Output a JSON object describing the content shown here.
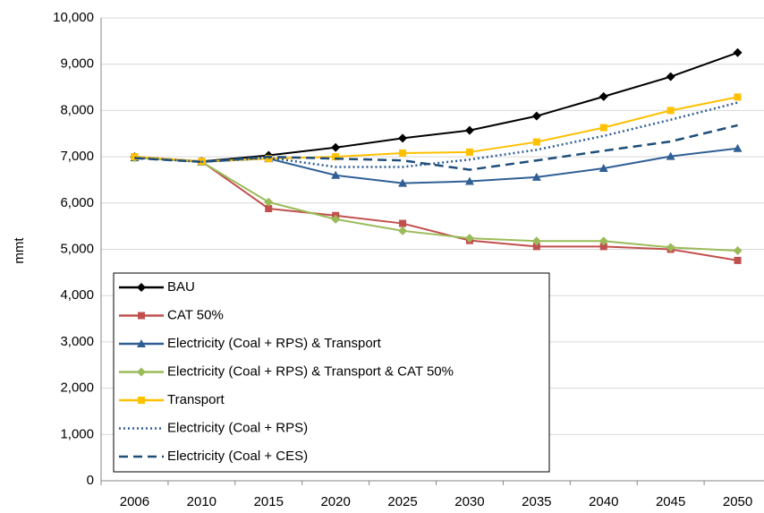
{
  "chart_data": {
    "type": "line",
    "y_label": "mmt",
    "categories": [
      "2006",
      "2010",
      "2015",
      "2020",
      "2025",
      "2030",
      "2035",
      "2040",
      "2045",
      "2050"
    ],
    "ylim": [
      0,
      10000
    ],
    "yticks": [
      0,
      {
        "value": 1000,
        "label": "1,000"
      },
      {
        "value": 2000,
        "label": "2,000"
      },
      {
        "value": 3000,
        "label": "3,000"
      },
      {
        "value": 4000,
        "label": "4,000"
      },
      {
        "value": 5000,
        "label": "5,000"
      },
      {
        "value": 6000,
        "label": "6,000"
      },
      {
        "value": 7000,
        "label": "7,000"
      },
      {
        "value": 8000,
        "label": "8,000"
      },
      {
        "value": 9000,
        "label": "9,000"
      },
      {
        "value": 10000,
        "label": "10,000"
      }
    ],
    "grid": true,
    "legend": "lower left",
    "series": [
      {
        "name": "BAU",
        "color": "#000000",
        "marker": "diamond",
        "dash": "solid",
        "values": [
          7000,
          6900,
          7030,
          7200,
          7400,
          7570,
          7880,
          8300,
          8730,
          9250
        ]
      },
      {
        "name": "CAT 50%",
        "color": "#c0504d",
        "marker": "square",
        "dash": "solid",
        "values": [
          7000,
          6900,
          5880,
          5730,
          5560,
          5190,
          5060,
          5060,
          5000,
          4760
        ]
      },
      {
        "name": "Electricity (Coal + RPS) & Transport",
        "color": "#2f5f95",
        "marker": "triangle",
        "dash": "solid",
        "values": [
          6980,
          6890,
          6960,
          6600,
          6430,
          6470,
          6560,
          6750,
          7010,
          7180
        ]
      },
      {
        "name": "Electricity (Coal + RPS) & Transport & CAT 50%",
        "color": "#9bbb59",
        "marker": "diamond",
        "dash": "solid",
        "values": [
          6980,
          6890,
          6020,
          5650,
          5400,
          5240,
          5180,
          5180,
          5040,
          4970
        ]
      },
      {
        "name": "Transport",
        "color": "#ffc000",
        "marker": "square",
        "dash": "solid",
        "values": [
          7000,
          6900,
          6960,
          7000,
          7080,
          7100,
          7320,
          7630,
          8000,
          8290
        ]
      },
      {
        "name": "Electricity (Coal + RPS)",
        "color": "#2f5f95",
        "marker": "none",
        "dash": "dotted",
        "values": [
          6980,
          6890,
          6980,
          6780,
          6780,
          6940,
          7150,
          7450,
          7800,
          8170
        ]
      },
      {
        "name": "Electricity (Coal + CES)",
        "color": "#1f4e79",
        "marker": "none",
        "dash": "dashed",
        "values": [
          6970,
          6890,
          7000,
          6960,
          6920,
          6720,
          6920,
          7130,
          7330,
          7680
        ]
      }
    ]
  }
}
